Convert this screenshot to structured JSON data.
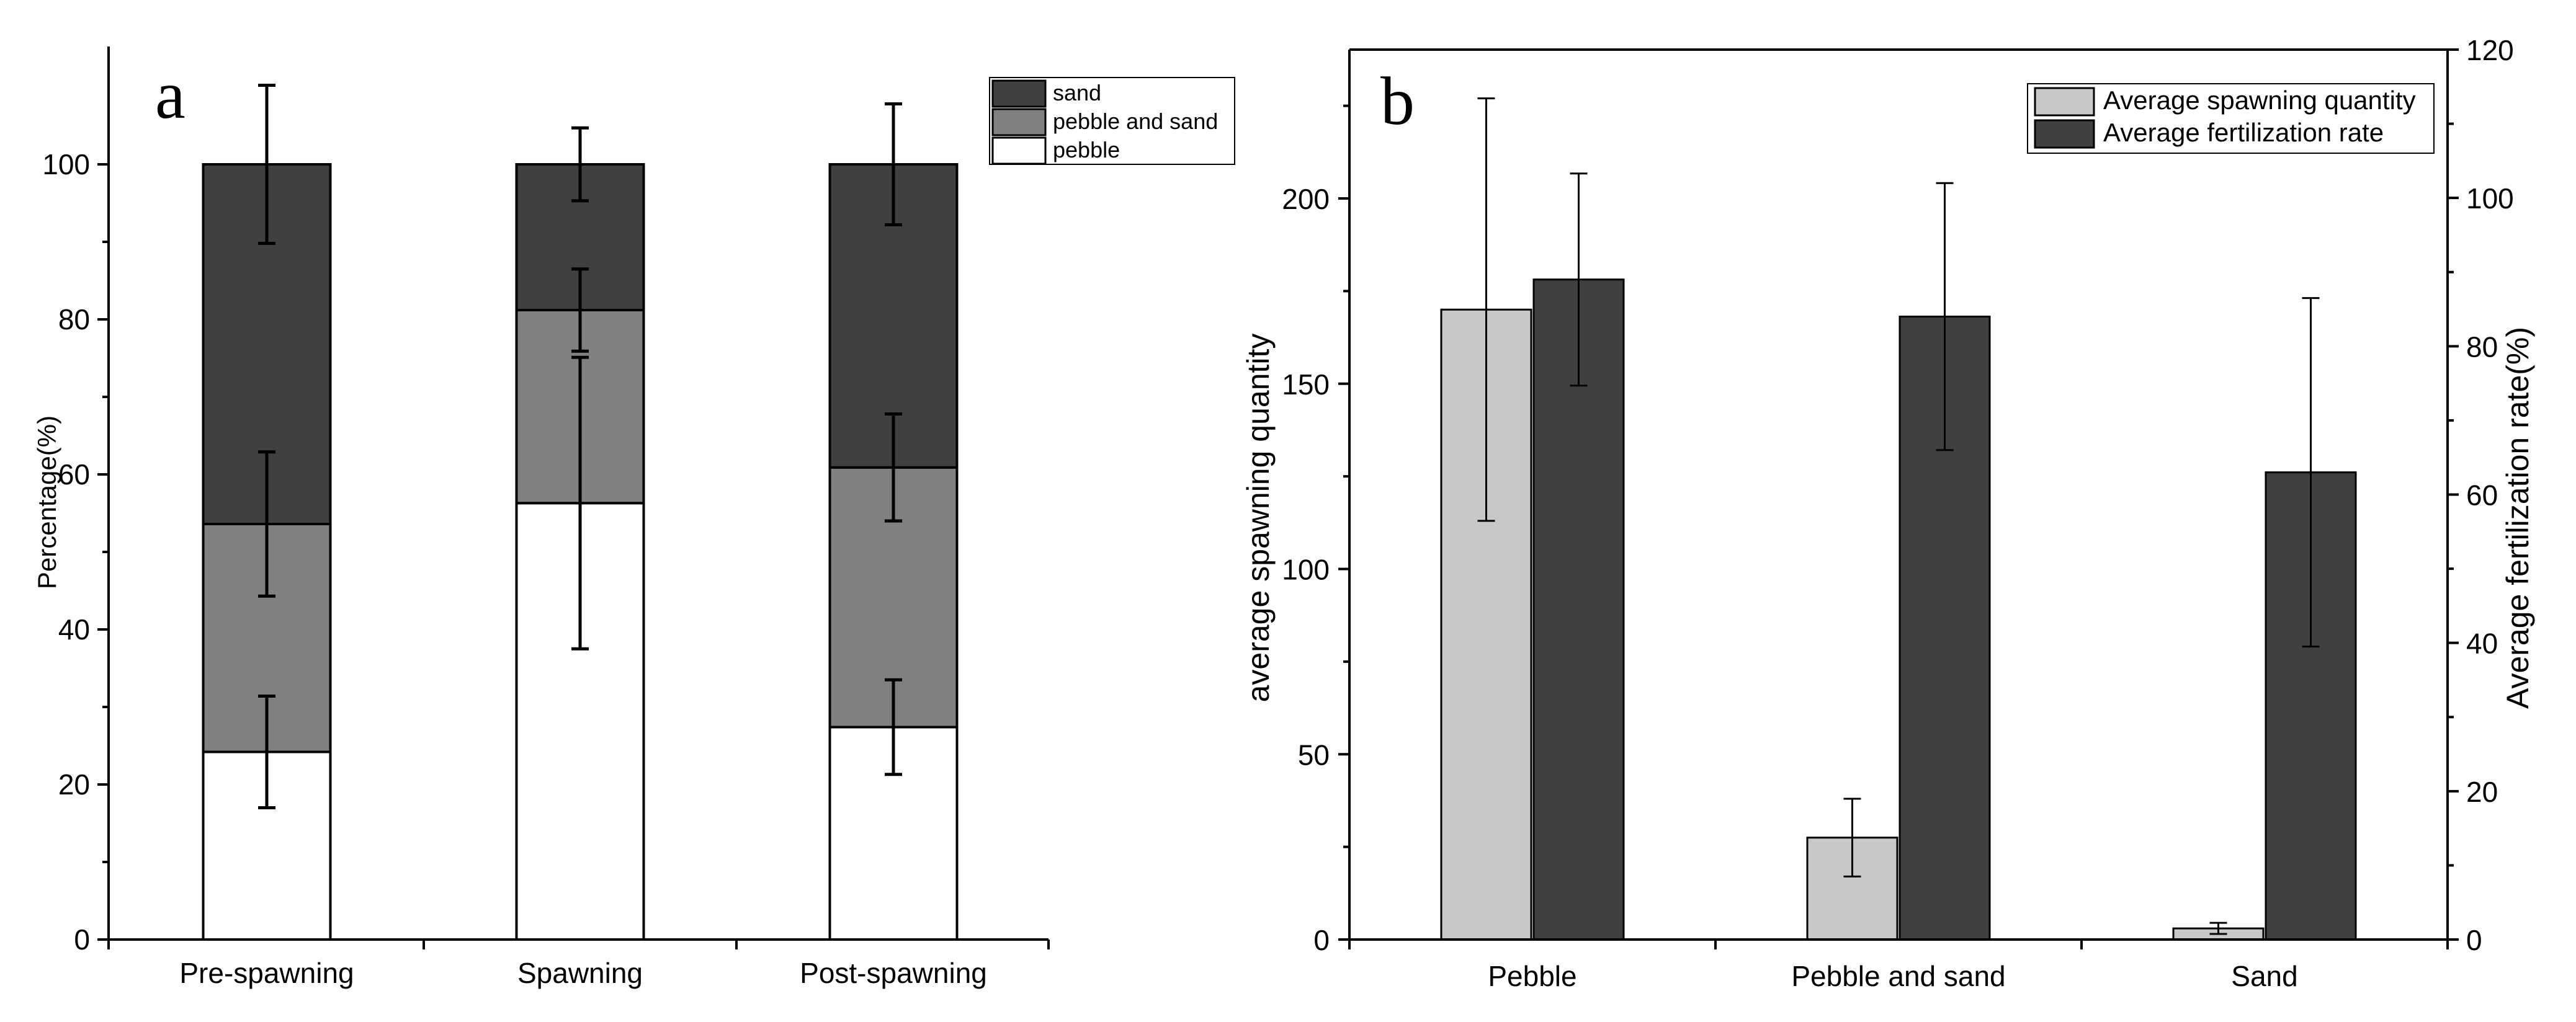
{
  "chart_data": [
    {
      "panel": "a",
      "type": "bar",
      "stacked": true,
      "categories": [
        "Pre-spawning",
        "Spawning",
        "Post-spawning"
      ],
      "ylabel": "Percentage(%)",
      "xlabel": "",
      "ylim": [
        0,
        115
      ],
      "yticks": [
        0,
        20,
        40,
        60,
        80,
        100
      ],
      "legend_position": "top-right",
      "series": [
        {
          "name": "pebble",
          "color": "#ffffff",
          "values": [
            24.2,
            56.3,
            27.4
          ],
          "errors": [
            7.2,
            18.8,
            6.1
          ],
          "legend_label": "pebble"
        },
        {
          "name": "pebble and sand",
          "color": "#808080",
          "values": [
            29.4,
            24.9,
            33.5
          ],
          "errors": [
            9.3,
            5.3,
            6.9
          ],
          "legend_label": "pebble and sand"
        },
        {
          "name": "sand",
          "color": "#404040",
          "values": [
            46.4,
            18.8,
            39.1
          ],
          "errors": [
            10.2,
            4.7,
            7.8
          ],
          "legend_label": "sand"
        }
      ]
    },
    {
      "panel": "b",
      "type": "bar",
      "categories": [
        "Pebble",
        "Pebble and sand",
        "Sand"
      ],
      "ylabel_left": "average spawning quantity",
      "ylabel_right": "Average fertilization rate(%)",
      "ylim_left": [
        0,
        240
      ],
      "ylim_right": [
        0,
        120
      ],
      "yticks_left": [
        0,
        50,
        100,
        150,
        200
      ],
      "yticks_right": [
        0,
        20,
        40,
        60,
        80,
        100,
        120
      ],
      "legend_position": "top-right",
      "series": [
        {
          "name": "Average spawning quantity",
          "axis": "left",
          "color": "#c8c8c8",
          "values": [
            170,
            27.5,
            3
          ],
          "errors": [
            57,
            10.5,
            1.5
          ]
        },
        {
          "name": "Average fertilization rate",
          "axis": "right",
          "color": "#404040",
          "values": [
            89,
            84,
            63
          ],
          "errors": [
            14.3,
            18,
            23.5
          ]
        }
      ]
    }
  ]
}
